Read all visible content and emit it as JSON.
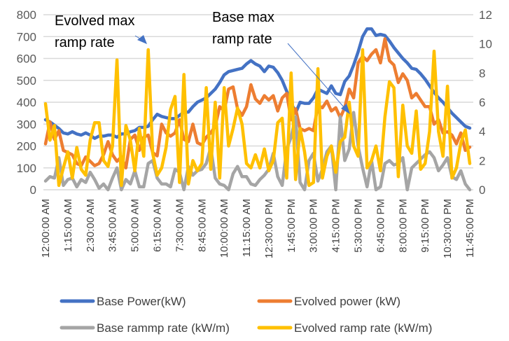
{
  "chart_data": {
    "type": "line",
    "title": "",
    "xlabel": "",
    "ylabel": "",
    "y_left": {
      "ylim": [
        0,
        800
      ],
      "ticks": [
        "0",
        "100",
        "200",
        "300",
        "400",
        "500",
        "600",
        "700",
        "800"
      ]
    },
    "y_right": {
      "ylim": [
        0,
        12
      ],
      "ticks": [
        "0",
        "2",
        "4",
        "6",
        "8",
        "10",
        "12"
      ]
    },
    "grid": true,
    "legend_position": "bottom",
    "x_tick_labels": [
      "12:00:00 AM",
      "1:15:00 AM",
      "2:30:00 AM",
      "3:45:00 AM",
      "5:00:00 AM",
      "6:15:00 AM",
      "7:30:00 AM",
      "8:45:00 AM",
      "10:00:00 AM",
      "11:15:00 AM",
      "12:30:00 PM",
      "1:45:00 PM",
      "3:00:00 PM",
      "4:15:00 PM",
      "5:30:00 PM",
      "6:45:00 PM",
      "8:00:00 PM",
      "9:15:00 PM",
      "10:30:00 PM",
      "11:45:00 PM"
    ],
    "x_tick_every": 5,
    "n_points": 96,
    "series": [
      {
        "name": "Base Power(kW)",
        "axis": "left",
        "color": "#4472C4",
        "values": [
          320,
          310,
          295,
          280,
          260,
          255,
          265,
          255,
          250,
          260,
          250,
          235,
          245,
          245,
          250,
          250,
          240,
          255,
          255,
          265,
          270,
          285,
          285,
          290,
          320,
          345,
          335,
          330,
          325,
          325,
          340,
          355,
          355,
          380,
          400,
          410,
          420,
          440,
          460,
          490,
          525,
          540,
          545,
          550,
          555,
          575,
          590,
          575,
          565,
          540,
          565,
          560,
          535,
          500,
          450,
          400,
          350,
          400,
          395,
          395,
          420,
          460,
          450,
          440,
          475,
          440,
          435,
          495,
          520,
          570,
          630,
          700,
          735,
          735,
          705,
          710,
          705,
          680,
          650,
          625,
          600,
          580,
          555,
          550,
          530,
          505,
          475,
          445,
          420,
          400,
          375,
          350,
          330,
          310,
          290,
          282
        ]
      },
      {
        "name": "Evolved power (kW)",
        "axis": "left",
        "color": "#ED7D31",
        "values": [
          210,
          310,
          230,
          270,
          180,
          170,
          160,
          120,
          110,
          150,
          130,
          110,
          120,
          160,
          220,
          160,
          130,
          150,
          100,
          230,
          250,
          180,
          240,
          250,
          170,
          155,
          300,
          260,
          245,
          260,
          320,
          230,
          220,
          300,
          215,
          205,
          240,
          260,
          290,
          380,
          360,
          460,
          470,
          370,
          340,
          380,
          480,
          415,
          395,
          430,
          410,
          430,
          360,
          420,
          440,
          320,
          370,
          280,
          270,
          280,
          270,
          385,
          375,
          405,
          360,
          375,
          330,
          375,
          460,
          420,
          580,
          610,
          590,
          620,
          640,
          580,
          690,
          590,
          570,
          490,
          530,
          500,
          420,
          440,
          410,
          380,
          380,
          300,
          320,
          260,
          265,
          250,
          210,
          260,
          180,
          195
        ]
      },
      {
        "name": "Base rammp rate (kW/m)",
        "axis": "right",
        "color": "#A5A5A5",
        "values": [
          0.6,
          0.9,
          0.8,
          2.2,
          0.3,
          0.7,
          0.8,
          0.2,
          0.7,
          0.5,
          1.2,
          0.7,
          0.1,
          0.4,
          0,
          0.8,
          1.5,
          0,
          0.7,
          0.4,
          1.3,
          0.2,
          0.2,
          1.8,
          2.0,
          0.8,
          0.4,
          0.4,
          0.2,
          1.4,
          1.2,
          0,
          1.6,
          1.0,
          1.3,
          1.4,
          1.8,
          2.9,
          0.8,
          0.4,
          0.3,
          0,
          1.1,
          1.6,
          0.9,
          0.9,
          0.4,
          0.3,
          0.7,
          1.0,
          1.4,
          2.5,
          0.9,
          0.3,
          2.8,
          3.6,
          5.0,
          0.5,
          0,
          2.0,
          2.5,
          0.6,
          1.4,
          2.6,
          3.0,
          0,
          5.0,
          2.0,
          2.8,
          5.3,
          3.0,
          1.5,
          0.2,
          2.0,
          0,
          0.2,
          1.8,
          2.0,
          1.7,
          1.8,
          2.2,
          0,
          1.5,
          1.8,
          2.1,
          2.4,
          2.6,
          2.2,
          1.3,
          1.7,
          2.2,
          0.9,
          0.7,
          1.3,
          0.4,
          0
        ]
      },
      {
        "name": "Evolved ramp rate (kW/m)",
        "axis": "right",
        "color": "#FFC000",
        "values": [
          5.9,
          3.4,
          4.4,
          0.3,
          1.5,
          2.6,
          0.8,
          2.9,
          1.4,
          1.0,
          3.4,
          4.6,
          4.6,
          2.0,
          1.6,
          3.0,
          8.9,
          0.3,
          4.4,
          3.4,
          1.3,
          4.2,
          2.3,
          9.6,
          2.5,
          1.0,
          1.5,
          2.9,
          5.5,
          6.4,
          0.5,
          7.9,
          0.4,
          2.0,
          1.3,
          1.8,
          7.0,
          1.4,
          6.0,
          0.8,
          7.0,
          3.0,
          4.2,
          5.6,
          4.5,
          1.8,
          1.5,
          2.4,
          1.5,
          2.8,
          1.3,
          2.0,
          4.6,
          4.9,
          0.8,
          8.0,
          0.7,
          4.2,
          2.6,
          0.3,
          0.5,
          8.3,
          0.8,
          2.3,
          3.0,
          1.2,
          3.3,
          3.6,
          6.0,
          3.0,
          2.3,
          9.6,
          1.5,
          2.0,
          3.0,
          1.3,
          5.0,
          7.4,
          7.0,
          0.9,
          5.8,
          3.0,
          2.5,
          5.4,
          1.4,
          1.8,
          4.0,
          9.5,
          4.0,
          2.3,
          7.1,
          0.8,
          1.5,
          3.2,
          4.1,
          1.8
        ]
      }
    ],
    "annotations": [
      {
        "lines": [
          "Evolved max",
          "ramp rate"
        ]
      },
      {
        "lines": [
          "Base max",
          "ramp rate"
        ]
      }
    ]
  }
}
